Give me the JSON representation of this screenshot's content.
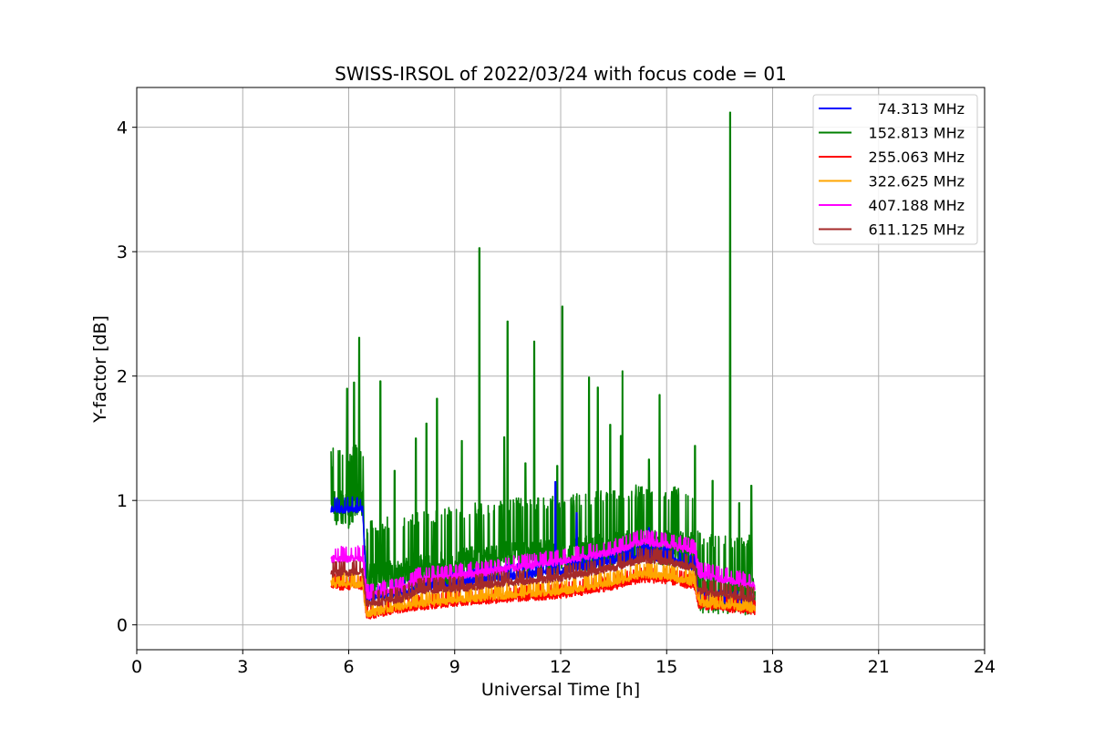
{
  "chart_data": {
    "type": "line",
    "title": "SWISS-IRSOL of 2022/03/24 with focus code = 01",
    "xlabel": "Universal Time [h]",
    "ylabel": "Y-factor [dB]",
    "xlim": [
      0,
      24
    ],
    "ylim": [
      -0.2,
      4.32
    ],
    "xticks": [
      0,
      3,
      6,
      9,
      12,
      15,
      18,
      21,
      24
    ],
    "yticks": [
      0,
      1,
      2,
      3,
      4
    ],
    "grid": true,
    "legend_position": "top-right",
    "time_range": [
      5.5,
      17.5
    ],
    "series": [
      {
        "name": "74.313 MHz",
        "color": "#0000ff",
        "baseline": [
          [
            5.5,
            0.92
          ],
          [
            6.4,
            0.92
          ],
          [
            6.5,
            0.2
          ],
          [
            7.5,
            0.25
          ],
          [
            9.0,
            0.32
          ],
          [
            10.5,
            0.38
          ],
          [
            12.0,
            0.42
          ],
          [
            13.5,
            0.5
          ],
          [
            14.3,
            0.55
          ],
          [
            15.0,
            0.52
          ],
          [
            15.8,
            0.45
          ],
          [
            15.9,
            0.18
          ],
          [
            17.5,
            0.16
          ]
        ],
        "peaks": [
          [
            11.85,
            1.15
          ],
          [
            12.45,
            0.9
          ],
          [
            14.5,
            0.78
          ]
        ]
      },
      {
        "name": "152.813 MHz",
        "color": "#008000",
        "baseline": [
          [
            5.5,
            0.9
          ],
          [
            6.0,
            0.88
          ],
          [
            6.4,
            0.95
          ],
          [
            6.5,
            0.3
          ],
          [
            7.5,
            0.35
          ],
          [
            9.0,
            0.42
          ],
          [
            10.5,
            0.48
          ],
          [
            12.0,
            0.5
          ],
          [
            13.5,
            0.55
          ],
          [
            14.3,
            0.6
          ],
          [
            15.0,
            0.58
          ],
          [
            15.8,
            0.55
          ],
          [
            15.9,
            0.2
          ],
          [
            17.5,
            0.18
          ]
        ],
        "peaks": [
          [
            5.55,
            1.27
          ],
          [
            5.95,
            1.9
          ],
          [
            6.15,
            1.95
          ],
          [
            6.3,
            2.31
          ],
          [
            6.9,
            1.96
          ],
          [
            7.3,
            1.24
          ],
          [
            7.9,
            1.5
          ],
          [
            8.2,
            1.62
          ],
          [
            8.5,
            1.82
          ],
          [
            9.2,
            1.48
          ],
          [
            9.7,
            3.03
          ],
          [
            10.4,
            1.51
          ],
          [
            10.5,
            2.44
          ],
          [
            11.0,
            1.3
          ],
          [
            11.25,
            2.28
          ],
          [
            11.9,
            1.28
          ],
          [
            12.05,
            2.56
          ],
          [
            12.8,
            1.99
          ],
          [
            13.05,
            1.91
          ],
          [
            13.4,
            1.61
          ],
          [
            13.7,
            1.52
          ],
          [
            13.75,
            2.04
          ],
          [
            14.5,
            1.33
          ],
          [
            14.8,
            1.85
          ],
          [
            15.8,
            1.44
          ],
          [
            16.3,
            1.16
          ],
          [
            16.8,
            4.12
          ],
          [
            17.05,
            0.98
          ],
          [
            17.4,
            1.12
          ]
        ],
        "noise": 0.35
      },
      {
        "name": "255.063 MHz",
        "color": "#ff0000",
        "baseline": [
          [
            5.5,
            0.3
          ],
          [
            6.4,
            0.3
          ],
          [
            6.5,
            0.06
          ],
          [
            7.5,
            0.12
          ],
          [
            9.0,
            0.17
          ],
          [
            10.5,
            0.2
          ],
          [
            12.0,
            0.23
          ],
          [
            13.5,
            0.3
          ],
          [
            14.3,
            0.36
          ],
          [
            15.0,
            0.35
          ],
          [
            15.8,
            0.3
          ],
          [
            15.9,
            0.15
          ],
          [
            17.5,
            0.1
          ]
        ]
      },
      {
        "name": "322.625 MHz",
        "color": "#ffa500",
        "baseline": [
          [
            5.5,
            0.32
          ],
          [
            6.4,
            0.32
          ],
          [
            6.5,
            0.08
          ],
          [
            7.5,
            0.14
          ],
          [
            9.0,
            0.19
          ],
          [
            10.5,
            0.23
          ],
          [
            12.0,
            0.26
          ],
          [
            13.5,
            0.33
          ],
          [
            14.3,
            0.4
          ],
          [
            15.0,
            0.38
          ],
          [
            15.8,
            0.33
          ],
          [
            15.9,
            0.17
          ],
          [
            17.5,
            0.12
          ]
        ]
      },
      {
        "name": "407.188 MHz",
        "color": "#ff00ff",
        "baseline": [
          [
            5.5,
            0.52
          ],
          [
            6.4,
            0.53
          ],
          [
            6.5,
            0.22
          ],
          [
            7.5,
            0.28
          ],
          [
            8.0,
            0.36
          ],
          [
            9.0,
            0.38
          ],
          [
            10.5,
            0.44
          ],
          [
            12.0,
            0.5
          ],
          [
            13.5,
            0.58
          ],
          [
            14.3,
            0.66
          ],
          [
            15.0,
            0.64
          ],
          [
            15.8,
            0.58
          ],
          [
            15.9,
            0.4
          ],
          [
            17.5,
            0.3
          ]
        ]
      },
      {
        "name": "611.125 MHz",
        "color": "#a52a2a",
        "baseline": [
          [
            5.5,
            0.4
          ],
          [
            6.4,
            0.42
          ],
          [
            6.5,
            0.16
          ],
          [
            7.5,
            0.2
          ],
          [
            8.0,
            0.27
          ],
          [
            9.0,
            0.28
          ],
          [
            10.5,
            0.33
          ],
          [
            12.0,
            0.37
          ],
          [
            13.5,
            0.45
          ],
          [
            14.3,
            0.52
          ],
          [
            15.0,
            0.5
          ],
          [
            15.8,
            0.45
          ],
          [
            15.9,
            0.26
          ],
          [
            17.5,
            0.2
          ]
        ]
      }
    ]
  }
}
